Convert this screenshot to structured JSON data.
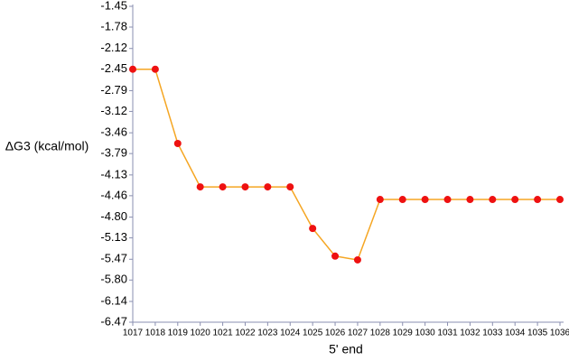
{
  "chart_data": {
    "type": "line",
    "y_label": "ΔG3 (kcal/mol)",
    "x_label": "5' end",
    "categories": [
      "1017",
      "1018",
      "1019",
      "1020",
      "1021",
      "1022",
      "1023",
      "1024",
      "1025",
      "1026",
      "1027",
      "1028",
      "1029",
      "1030",
      "1031",
      "1032",
      "1033",
      "1034",
      "1035",
      "1036"
    ],
    "series": [
      {
        "color": "#f5a623",
        "marker_color": "#ee1111",
        "values": [
          -2.45,
          -2.45,
          -3.63,
          -4.32,
          -4.32,
          -4.32,
          -4.32,
          -4.32,
          -4.98,
          -5.42,
          -5.48,
          -4.52,
          -4.52,
          -4.52,
          -4.52,
          -4.52,
          -4.52,
          -4.52,
          -4.52,
          -4.52
        ]
      }
    ],
    "ylim": [
      -6.47,
      -1.45
    ],
    "yticks": [
      -1.45,
      -1.78,
      -2.12,
      -2.45,
      -2.79,
      -3.12,
      -3.46,
      -3.79,
      -4.13,
      -4.46,
      {
        "value": -4.8,
        "label": "-4.80"
      },
      -5.13,
      -5.47,
      {
        "value": -5.8,
        "label": "-5.80"
      },
      -6.14,
      -6.47
    ]
  }
}
